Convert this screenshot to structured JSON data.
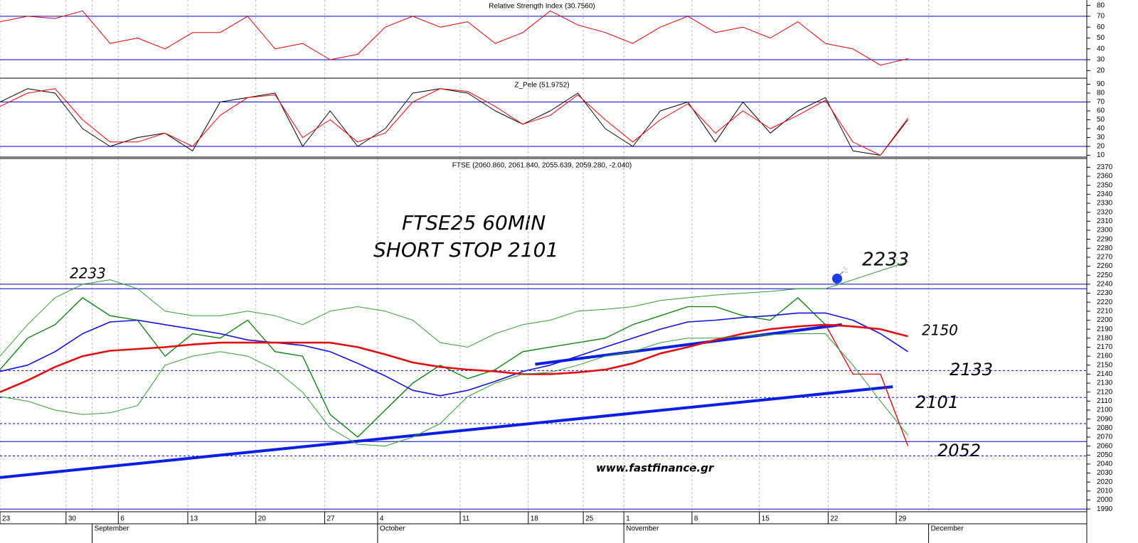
{
  "chart_data": [
    {
      "type": "line",
      "title": "Relative Strength Index (30.7560)",
      "x": [
        0,
        2,
        4,
        6,
        8,
        10,
        12,
        14,
        16,
        18,
        20,
        22,
        24,
        26,
        28,
        30,
        32,
        34,
        36,
        38,
        40,
        42,
        44,
        46,
        48,
        50,
        52,
        54,
        56,
        58,
        60,
        62,
        64,
        66
      ],
      "series": [
        {
          "color": "#e00000",
          "values": [
            65,
            70,
            68,
            75,
            45,
            50,
            40,
            55,
            55,
            70,
            40,
            45,
            30,
            35,
            60,
            70,
            60,
            65,
            45,
            55,
            75,
            62,
            55,
            45,
            60,
            70,
            55,
            60,
            50,
            65,
            45,
            40,
            25,
            31
          ]
        }
      ],
      "ylim": [
        13,
        85
      ],
      "yticks": [
        20,
        30,
        40,
        50,
        60,
        70,
        80
      ],
      "hlines": [
        {
          "value": 70,
          "color": "#0000cc",
          "style": "solid"
        },
        {
          "value": 30,
          "color": "#0000cc",
          "style": "solid"
        }
      ]
    },
    {
      "type": "line",
      "title": "Z_Pele (51.9752)",
      "x": [
        0,
        2,
        4,
        6,
        8,
        10,
        12,
        14,
        16,
        18,
        20,
        22,
        24,
        26,
        28,
        30,
        32,
        34,
        36,
        38,
        40,
        42,
        44,
        46,
        48,
        50,
        52,
        54,
        56,
        58,
        60,
        62,
        64,
        66
      ],
      "series": [
        {
          "color": "#000000",
          "values": [
            70,
            85,
            80,
            40,
            20,
            30,
            35,
            15,
            70,
            75,
            80,
            20,
            60,
            20,
            40,
            80,
            85,
            80,
            60,
            45,
            60,
            80,
            40,
            20,
            60,
            70,
            25,
            70,
            35,
            60,
            75,
            15,
            10,
            50
          ]
        },
        {
          "color": "#ff0000",
          "values": [
            65,
            80,
            85,
            50,
            25,
            25,
            35,
            20,
            55,
            75,
            78,
            30,
            50,
            25,
            35,
            70,
            85,
            82,
            65,
            45,
            55,
            78,
            50,
            25,
            50,
            68,
            35,
            60,
            40,
            55,
            72,
            25,
            10,
            52
          ]
        }
      ],
      "ylim": [
        8,
        96
      ],
      "yticks": [
        10,
        20,
        30,
        40,
        50,
        60,
        70,
        80,
        90
      ],
      "hlines": [
        {
          "value": 70,
          "color": "#0000cc",
          "style": "solid"
        },
        {
          "value": 20,
          "color": "#0000cc",
          "style": "solid"
        }
      ]
    },
    {
      "type": "line",
      "title": "FTSE (2060.860, 2061.840, 2055.639, 2059.280, -2.040)",
      "x": [
        0,
        2,
        4,
        6,
        8,
        10,
        12,
        14,
        16,
        18,
        20,
        22,
        24,
        26,
        28,
        30,
        32,
        34,
        36,
        38,
        40,
        42,
        44,
        46,
        48,
        50,
        52,
        54,
        56,
        58,
        60,
        62,
        64,
        66
      ],
      "series": [
        {
          "color": "#008000",
          "width": 1.3,
          "values": [
            2145,
            2180,
            2195,
            2225,
            2205,
            2200,
            2160,
            2185,
            2180,
            2200,
            2165,
            2160,
            2095,
            2070,
            2100,
            2130,
            2150,
            2135,
            2145,
            2165,
            2170,
            2175,
            2180,
            2195,
            2205,
            2215,
            2215,
            2205,
            2200,
            2225,
            2195,
            null,
            null,
            null
          ]
        },
        {
          "color": "#e00000",
          "width": 1.3,
          "values": [
            null,
            null,
            null,
            null,
            null,
            null,
            null,
            null,
            null,
            null,
            null,
            null,
            null,
            null,
            null,
            null,
            null,
            null,
            null,
            null,
            null,
            null,
            null,
            null,
            null,
            null,
            null,
            null,
            null,
            null,
            2195,
            2140,
            2140,
            2060
          ]
        },
        {
          "color": "#1010e0",
          "width": 1.6,
          "values": [
            2143,
            2150,
            2165,
            2185,
            2198,
            2200,
            2195,
            2190,
            2185,
            2178,
            2175,
            2172,
            2165,
            2152,
            2138,
            2122,
            2116,
            2122,
            2132,
            2143,
            2150,
            2160,
            2170,
            2180,
            2190,
            2198,
            2200,
            2203,
            2205,
            2208,
            2208,
            2200,
            2185,
            2165
          ]
        },
        {
          "color": "#e01010",
          "width": 2.6,
          "values": [
            2120,
            2133,
            2148,
            2160,
            2166,
            2168,
            2170,
            2173,
            2175,
            2175,
            2175,
            2175,
            2175,
            2170,
            2162,
            2153,
            2148,
            2145,
            2143,
            2140,
            2140,
            2142,
            2145,
            2152,
            2163,
            2170,
            2178,
            2185,
            2190,
            2193,
            2195,
            2193,
            2190,
            2182
          ]
        },
        {
          "color": "#30a030",
          "width": 1,
          "values": [
            2160,
            2195,
            2225,
            2240,
            2245,
            2235,
            2210,
            2205,
            2205,
            2210,
            2205,
            2195,
            2210,
            2215,
            2210,
            2200,
            2175,
            2170,
            2185,
            2195,
            2200,
            2210,
            2212,
            2215,
            2222,
            2225,
            2228,
            2230,
            2232,
            2235,
            2235,
            2245,
            2255,
            2265
          ]
        },
        {
          "color": "#30a030",
          "width": 1,
          "values": [
            2115,
            2110,
            2100,
            2095,
            2097,
            2105,
            2150,
            2160,
            2165,
            2160,
            2145,
            2120,
            2080,
            2062,
            2060,
            2070,
            2085,
            2115,
            2130,
            2140,
            2142,
            2150,
            2160,
            2165,
            2175,
            2180,
            2180,
            2182,
            2184,
            2185,
            2185,
            2150,
            2110,
            2072
          ]
        }
      ],
      "ylim": [
        1987,
        2379
      ],
      "yticks": [
        1990,
        2000,
        2010,
        2020,
        2030,
        2040,
        2050,
        2060,
        2070,
        2080,
        2090,
        2100,
        2110,
        2120,
        2130,
        2140,
        2150,
        2160,
        2170,
        2180,
        2190,
        2200,
        2210,
        2220,
        2230,
        2240,
        2250,
        2260,
        2270,
        2280,
        2290,
        2300,
        2310,
        2320,
        2330,
        2340,
        2350,
        2360,
        2370
      ],
      "hlines": [
        {
          "value": 2240,
          "color": "#0000cc",
          "style": "solid"
        },
        {
          "value": 2235,
          "color": "#0000cc",
          "style": "solid"
        },
        {
          "value": 2144,
          "color": "#0000cc",
          "style": "dashed"
        },
        {
          "value": 2114,
          "color": "#0000cc",
          "style": "dashed"
        },
        {
          "value": 2085,
          "color": "#0000cc",
          "style": "dashed"
        },
        {
          "value": 2065,
          "color": "#0000cc",
          "style": "solid"
        },
        {
          "value": 2049,
          "color": "#0000cc",
          "style": "dashed"
        },
        {
          "value": 1990,
          "color": "#0000cc",
          "style": "solid"
        }
      ],
      "trendlines": [
        {
          "x": [
            0,
            64.9
          ],
          "y": [
            2025,
            2126
          ],
          "color": "#0a1ee6"
        },
        {
          "x": [
            38.9,
            61.2
          ],
          "y": [
            2151,
            2195
          ],
          "color": "#0a1ee6"
        }
      ],
      "annotations": [
        "FTSE25 60MIN",
        "SHORT STOP 2101",
        "2233",
        "2233",
        "2150",
        "2133",
        "2101",
        "2052",
        "www.fastfinance.gr"
      ],
      "xlim": [
        0,
        79
      ],
      "xticks": [
        {
          "value": 0,
          "label": "23"
        },
        {
          "value": 4.8,
          "label": "30"
        },
        {
          "value": 8.6,
          "label": "6"
        },
        {
          "value": 13.65,
          "label": "13"
        },
        {
          "value": 18.6,
          "label": "20"
        },
        {
          "value": 23.6,
          "label": "27"
        },
        {
          "value": 27.45,
          "label": "4"
        },
        {
          "value": 33.45,
          "label": "11"
        },
        {
          "value": 38.4,
          "label": "18"
        },
        {
          "value": 42.4,
          "label": "25"
        },
        {
          "value": 45.35,
          "label": "1"
        },
        {
          "value": 50.3,
          "label": "8"
        },
        {
          "value": 55.2,
          "label": "15"
        },
        {
          "value": 60.2,
          "label": "22"
        },
        {
          "value": 65.15,
          "label": "29"
        }
      ],
      "months": [
        {
          "value": 6.7,
          "label": "September"
        },
        {
          "value": 27.45,
          "label": "October"
        },
        {
          "value": 45.35,
          "label": "November"
        },
        {
          "value": 67.5,
          "label": "December"
        }
      ]
    }
  ]
}
